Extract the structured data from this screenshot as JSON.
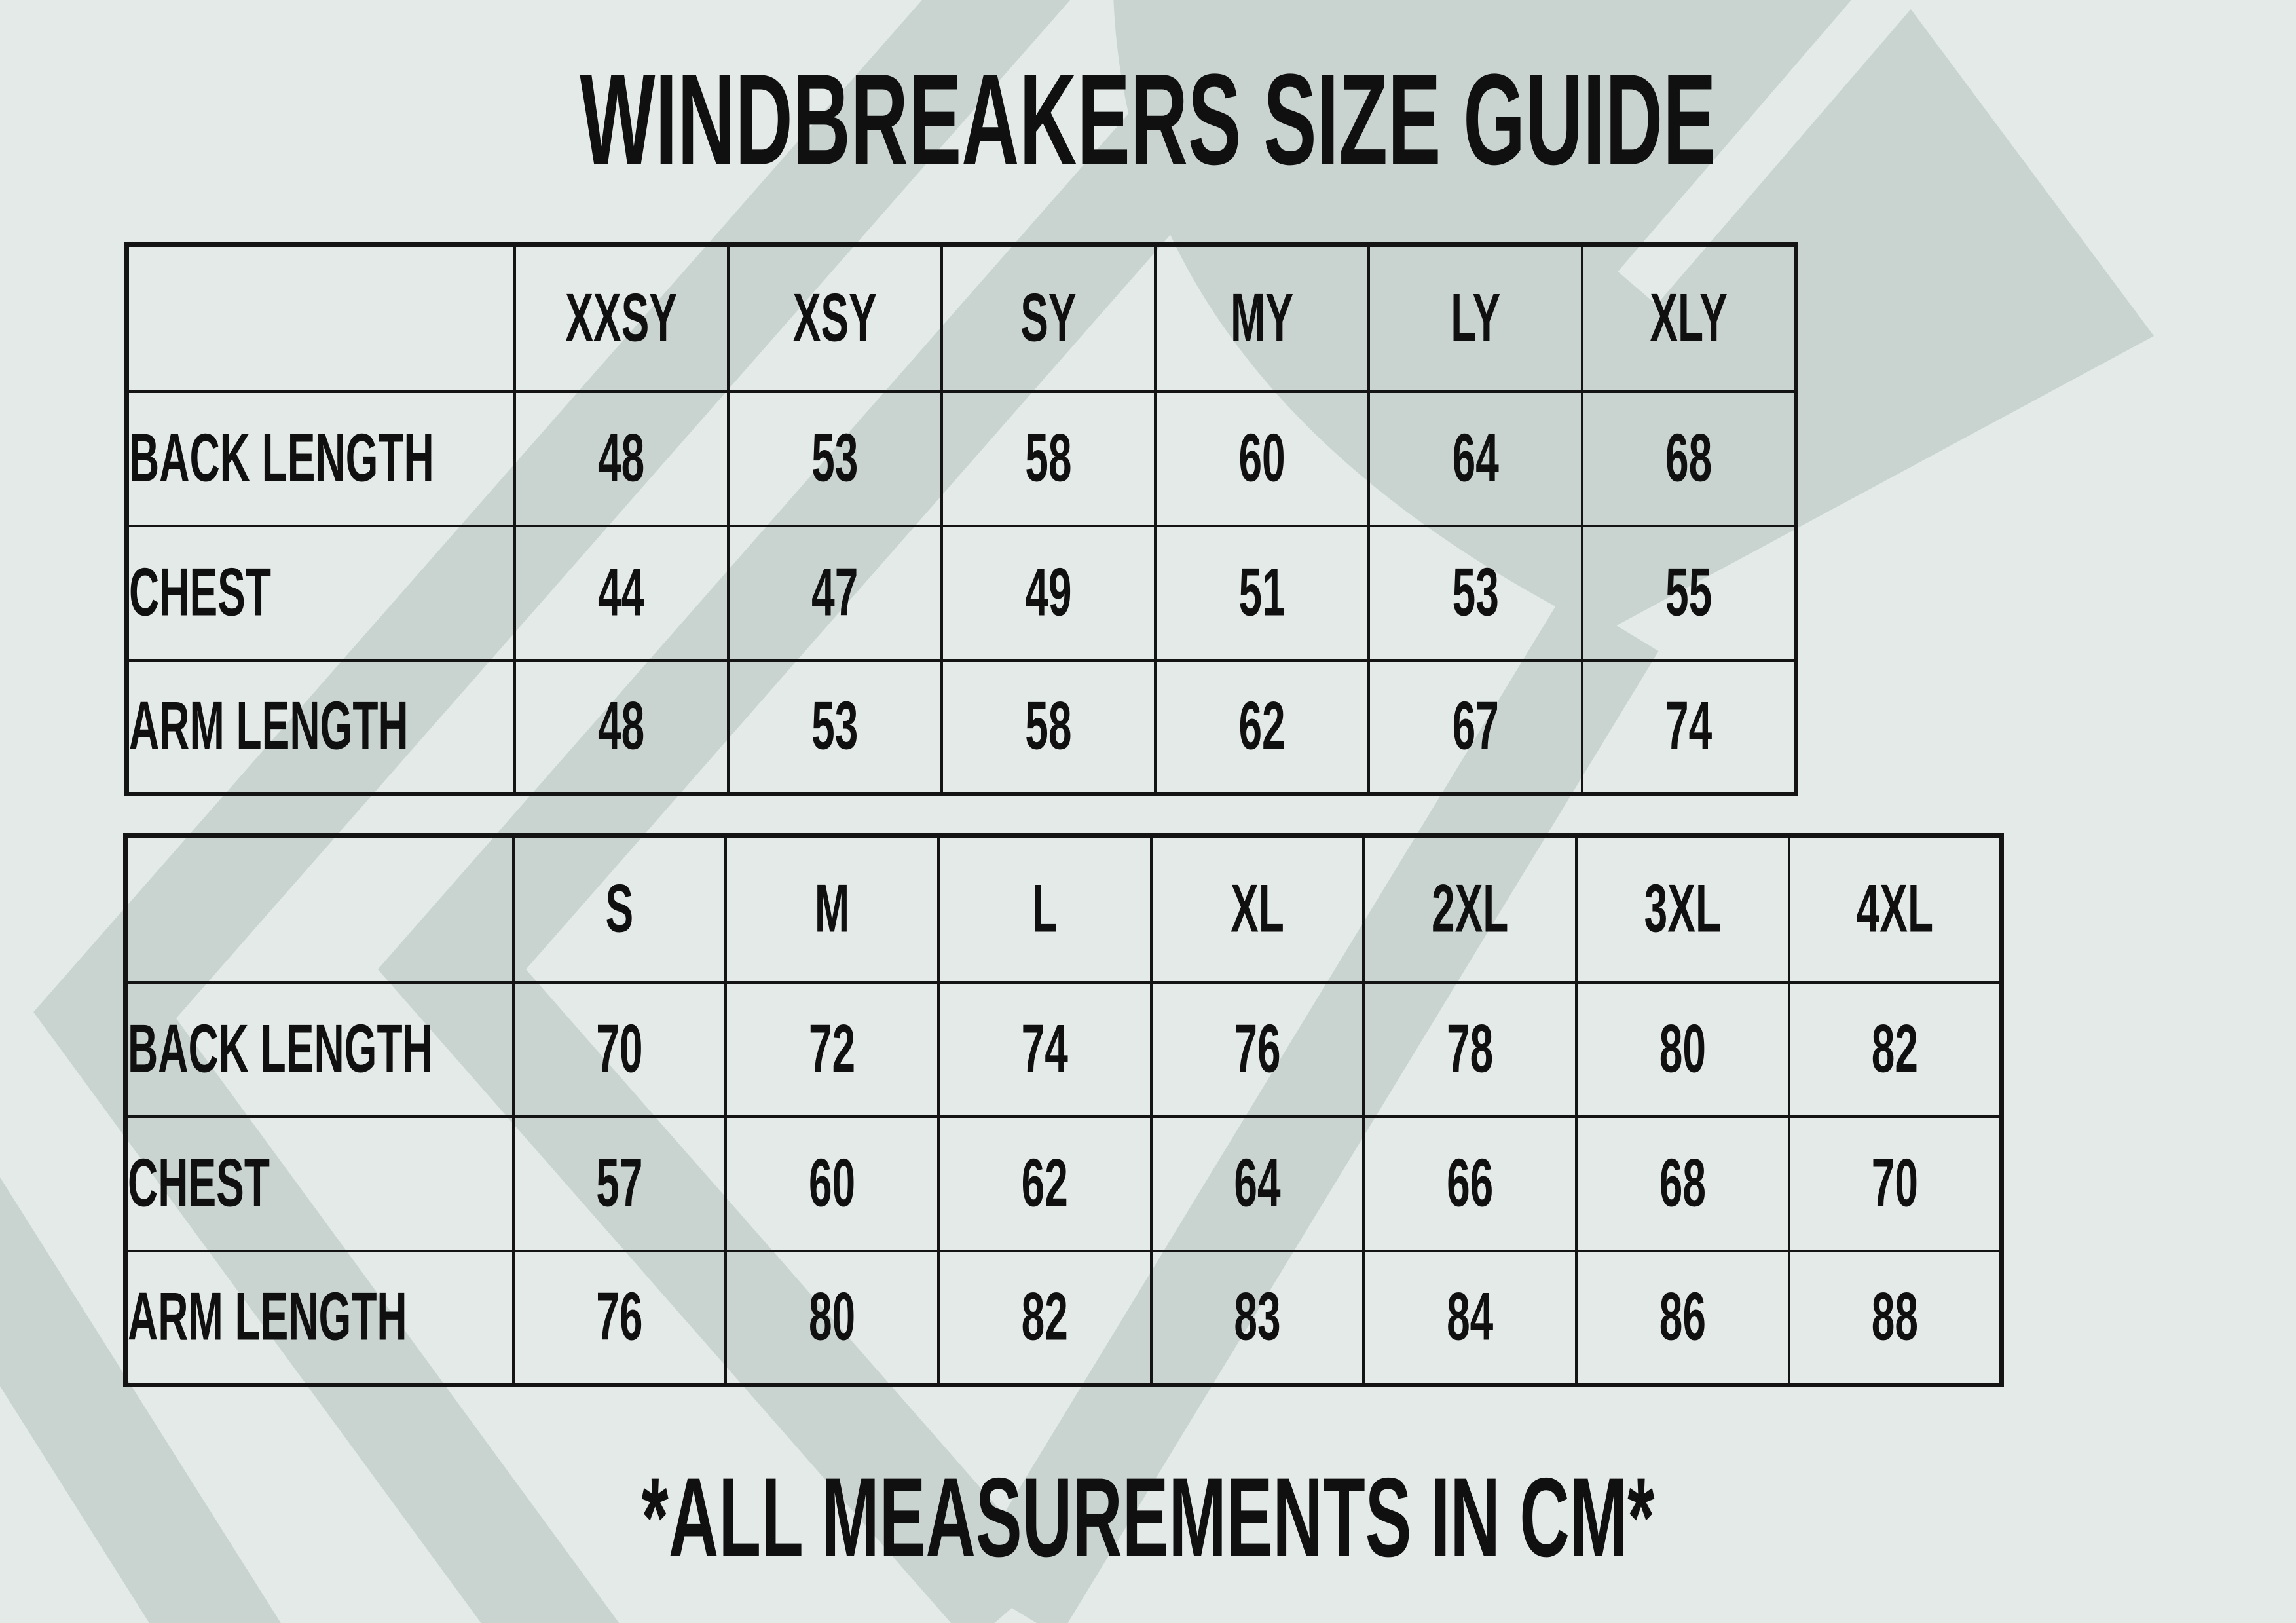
{
  "title": "WINDBREAKERS SIZE GUIDE",
  "footer_note": "*ALL MEASUREMENTS IN CM*",
  "colors": {
    "background": "#e3eae7",
    "watermark": "#c9d4d0",
    "text": "#101010",
    "table_border": "#141414"
  },
  "watermark_icon": "brand-logo-watermark",
  "tables": [
    {
      "name": "youth-sizes",
      "columns": [
        "XXSY",
        "XSY",
        "SY",
        "MY",
        "LY",
        "XLY"
      ],
      "rows": [
        {
          "label": "BACK LENGTH",
          "values": [
            "48",
            "53",
            "58",
            "60",
            "64",
            "68"
          ]
        },
        {
          "label": "CHEST",
          "values": [
            "44",
            "47",
            "49",
            "51",
            "53",
            "55"
          ]
        },
        {
          "label": "ARM LENGTH",
          "values": [
            "48",
            "53",
            "58",
            "62",
            "67",
            "74"
          ]
        }
      ]
    },
    {
      "name": "adult-sizes",
      "columns": [
        "S",
        "M",
        "L",
        "XL",
        "2XL",
        "3XL",
        "4XL"
      ],
      "rows": [
        {
          "label": "BACK LENGTH",
          "values": [
            "70",
            "72",
            "74",
            "76",
            "78",
            "80",
            "82"
          ]
        },
        {
          "label": "CHEST",
          "values": [
            "57",
            "60",
            "62",
            "64",
            "66",
            "68",
            "70"
          ]
        },
        {
          "label": "ARM LENGTH",
          "values": [
            "76",
            "80",
            "82",
            "83",
            "84",
            "86",
            "88"
          ]
        }
      ]
    }
  ]
}
